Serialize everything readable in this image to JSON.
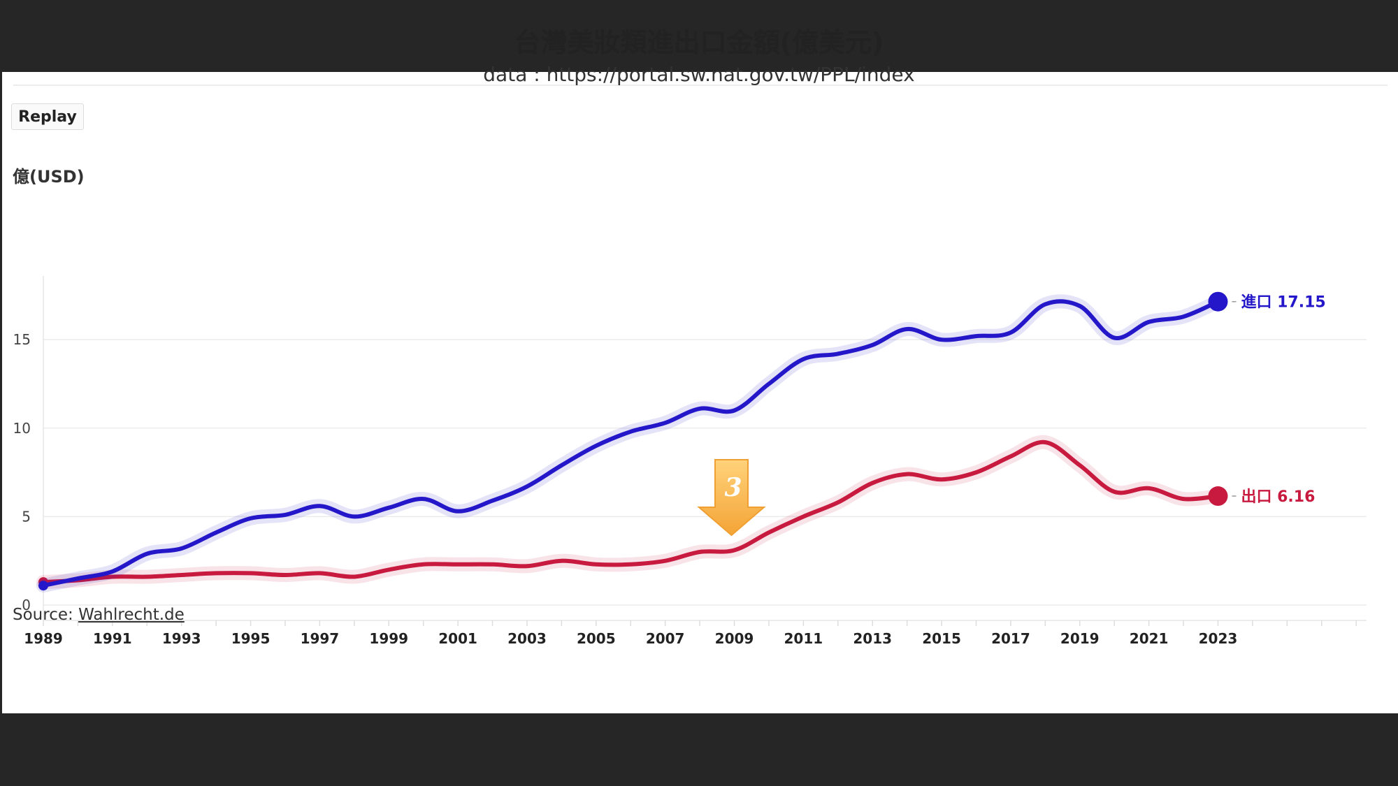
{
  "title": "台灣美妝類進出口金額(億美元)",
  "subtitle": "data : https://portal.sw.nat.gov.tw/PPL/index",
  "replay_label": "Replay",
  "source_prefix": "Source: ",
  "source_link": "Wahlrecht.de",
  "badge": "3",
  "chart_data": {
    "type": "line",
    "ylabel": "億(USD)",
    "ylim": [
      0,
      18.6
    ],
    "yticks": [
      0,
      5,
      10,
      15
    ],
    "xlim": [
      1989,
      2027.3
    ],
    "xticks": [
      1989,
      1991,
      1993,
      1995,
      1997,
      1999,
      2001,
      2003,
      2005,
      2007,
      2009,
      2011,
      2013,
      2015,
      2017,
      2019,
      2021,
      2023
    ],
    "grid": true,
    "x": [
      1989,
      1990,
      1991,
      1992,
      1993,
      1994,
      1995,
      1996,
      1997,
      1998,
      1999,
      2000,
      2001,
      2002,
      2003,
      2004,
      2005,
      2006,
      2007,
      2008,
      2009,
      2010,
      2011,
      2012,
      2013,
      2014,
      2015,
      2016,
      2017,
      2018,
      2019,
      2020,
      2021,
      2022,
      2023
    ],
    "series": [
      {
        "name": "進口",
        "color": "#2417c9",
        "end_label": "進口 17.15",
        "values": [
          1.1,
          1.5,
          1.9,
          2.9,
          3.2,
          4.1,
          4.9,
          5.1,
          5.6,
          5.0,
          5.5,
          6.0,
          5.3,
          5.9,
          6.7,
          7.9,
          9.0,
          9.8,
          10.3,
          11.1,
          11.0,
          12.5,
          13.9,
          14.2,
          14.7,
          15.6,
          15.0,
          15.2,
          15.4,
          17.0,
          16.9,
          15.1,
          16.0,
          16.3,
          17.15
        ]
      },
      {
        "name": "出口",
        "color": "#c8193f",
        "end_label": "出口 6.16",
        "values": [
          1.3,
          1.4,
          1.6,
          1.6,
          1.7,
          1.8,
          1.8,
          1.7,
          1.8,
          1.6,
          2.0,
          2.3,
          2.3,
          2.3,
          2.2,
          2.5,
          2.3,
          2.3,
          2.5,
          3.0,
          3.1,
          4.1,
          5.0,
          5.8,
          6.9,
          7.4,
          7.1,
          7.5,
          8.4,
          9.2,
          7.9,
          6.4,
          6.6,
          6.0,
          6.16
        ]
      }
    ]
  }
}
